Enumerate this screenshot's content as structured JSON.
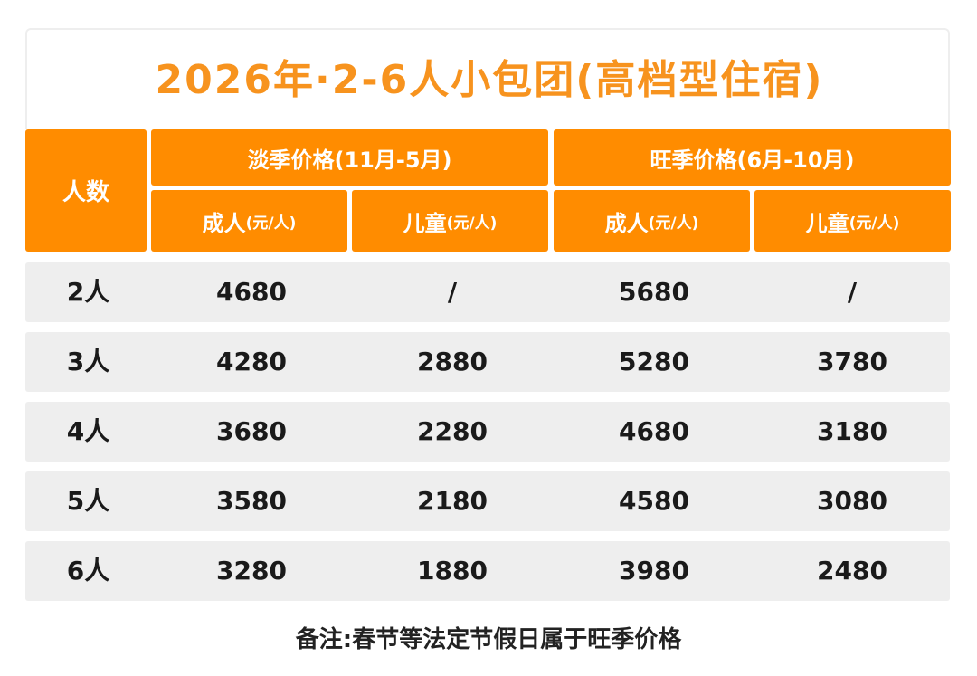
{
  "title": "2026年·2-6人小包团(高档型住宿)",
  "header": {
    "people": "人数",
    "off_season": "淡季价格(11月-5月)",
    "peak_season": "旺季价格(6月-10月)",
    "adult": "成人",
    "child": "儿童",
    "unit": "(元/人)"
  },
  "rows": [
    {
      "people": "2人",
      "off_adult": "4680",
      "off_child": "/",
      "peak_adult": "5680",
      "peak_child": "/"
    },
    {
      "people": "3人",
      "off_adult": "4280",
      "off_child": "2880",
      "peak_adult": "5280",
      "peak_child": "3780"
    },
    {
      "people": "4人",
      "off_adult": "3680",
      "off_child": "2280",
      "peak_adult": "4680",
      "peak_child": "3180"
    },
    {
      "people": "5人",
      "off_adult": "3580",
      "off_child": "2180",
      "peak_adult": "4580",
      "peak_child": "3080"
    },
    {
      "people": "6人",
      "off_adult": "3280",
      "off_child": "1880",
      "peak_adult": "3980",
      "peak_child": "2480"
    }
  ],
  "footnote": "备注:春节等法定节假日属于旺季价格",
  "colors": {
    "accent": "#FF8C00",
    "title": "#F7931E",
    "row_bg": "#EEEEEE"
  }
}
